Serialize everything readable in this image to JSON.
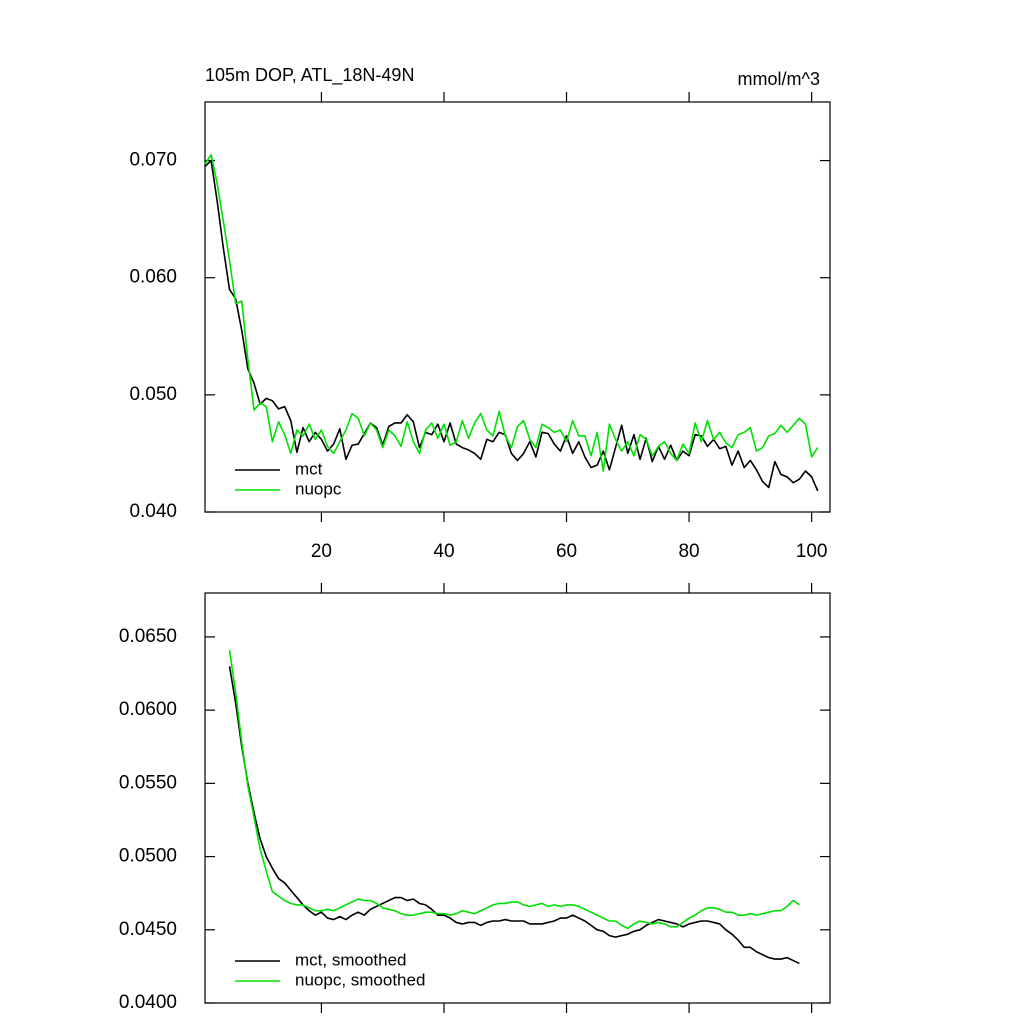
{
  "chart_data": [
    {
      "type": "line",
      "title": "105m DOP, ATL_18N-49N",
      "units": "mmol/m^3",
      "x": [
        1,
        2,
        3,
        4,
        5,
        6,
        7,
        8,
        9,
        10,
        11,
        12,
        13,
        14,
        15,
        16,
        17,
        18,
        19,
        20,
        21,
        22,
        23,
        24,
        25,
        26,
        27,
        28,
        29,
        30,
        31,
        32,
        33,
        34,
        35,
        36,
        37,
        38,
        39,
        40,
        41,
        42,
        43,
        44,
        45,
        46,
        47,
        48,
        49,
        50,
        51,
        52,
        53,
        54,
        55,
        56,
        57,
        58,
        59,
        60,
        61,
        62,
        63,
        64,
        65,
        66,
        67,
        68,
        69,
        70,
        71,
        72,
        73,
        74,
        75,
        76,
        77,
        78,
        79,
        80,
        81,
        82,
        83,
        84,
        85,
        86,
        87,
        88,
        89,
        90,
        91,
        92,
        93,
        94,
        95,
        96,
        97,
        98,
        99,
        100,
        101
      ],
      "series": [
        {
          "name": "mct",
          "color": "#000000",
          "values": [
            0.0695,
            0.07,
            0.0665,
            0.0625,
            0.059,
            0.0582,
            0.0555,
            0.0522,
            0.051,
            0.0492,
            0.0497,
            0.0495,
            0.0488,
            0.049,
            0.0478,
            0.0451,
            0.0472,
            0.046,
            0.0468,
            0.0462,
            0.0452,
            0.0458,
            0.0471,
            0.0445,
            0.0457,
            0.0458,
            0.0467,
            0.0476,
            0.0472,
            0.0457,
            0.0473,
            0.0476,
            0.0476,
            0.0483,
            0.0477,
            0.0455,
            0.0468,
            0.0466,
            0.0475,
            0.046,
            0.0476,
            0.0458,
            0.0455,
            0.0453,
            0.045,
            0.0445,
            0.0462,
            0.046,
            0.0468,
            0.0466,
            0.045,
            0.0444,
            0.045,
            0.046,
            0.0447,
            0.0468,
            0.0467,
            0.0458,
            0.0452,
            0.0465,
            0.045,
            0.046,
            0.0447,
            0.0438,
            0.044,
            0.0452,
            0.0436,
            0.0455,
            0.0474,
            0.045,
            0.0466,
            0.0445,
            0.0463,
            0.0443,
            0.0456,
            0.0445,
            0.0457,
            0.0444,
            0.0452,
            0.0448,
            0.0466,
            0.0465,
            0.0456,
            0.0462,
            0.0454,
            0.0456,
            0.044,
            0.0452,
            0.0438,
            0.0444,
            0.0436,
            0.0426,
            0.0421,
            0.0443,
            0.0432,
            0.043,
            0.0425,
            0.0428,
            0.0435,
            0.043,
            0.0418
          ]
        },
        {
          "name": "nuopc",
          "color": "#00e000",
          "values": [
            0.0697,
            0.0705,
            0.068,
            0.0648,
            0.0615,
            0.0578,
            0.058,
            0.053,
            0.0487,
            0.0493,
            0.049,
            0.046,
            0.0477,
            0.0466,
            0.045,
            0.047,
            0.0465,
            0.0475,
            0.0462,
            0.047,
            0.0456,
            0.045,
            0.046,
            0.047,
            0.0484,
            0.048,
            0.0465,
            0.0476,
            0.047,
            0.0455,
            0.047,
            0.0465,
            0.0456,
            0.0477,
            0.046,
            0.045,
            0.047,
            0.0476,
            0.0463,
            0.0475,
            0.0457,
            0.046,
            0.0478,
            0.0463,
            0.0476,
            0.0484,
            0.047,
            0.0465,
            0.0486,
            0.0465,
            0.0455,
            0.0473,
            0.0478,
            0.0462,
            0.0455,
            0.0475,
            0.0472,
            0.0468,
            0.047,
            0.046,
            0.0478,
            0.0465,
            0.0465,
            0.0448,
            0.0468,
            0.0435,
            0.0475,
            0.0462,
            0.0452,
            0.046,
            0.0448,
            0.0466,
            0.0462,
            0.0448,
            0.0456,
            0.046,
            0.045,
            0.0444,
            0.0458,
            0.045,
            0.0476,
            0.046,
            0.0478,
            0.0462,
            0.0468,
            0.0459,
            0.0455,
            0.0466,
            0.0468,
            0.0472,
            0.0452,
            0.0455,
            0.0465,
            0.0467,
            0.0474,
            0.0468,
            0.0474,
            0.048,
            0.0475,
            0.0447,
            0.0455
          ]
        }
      ],
      "xlim": [
        1,
        103
      ],
      "xticks": [
        20,
        40,
        60,
        80,
        100
      ],
      "xtick_labels": true,
      "ylim": [
        0.04,
        0.075
      ],
      "yticks": [
        {
          "value": 0.04,
          "label": "0.040"
        },
        {
          "value": 0.05,
          "label": "0.050"
        },
        {
          "value": 0.06,
          "label": "0.060"
        },
        {
          "value": 0.07,
          "label": "0.070"
        }
      ],
      "legend": "lower left"
    },
    {
      "type": "line",
      "x": [
        5,
        6,
        7,
        8,
        9,
        10,
        11,
        12,
        13,
        14,
        15,
        16,
        17,
        18,
        19,
        20,
        21,
        22,
        23,
        24,
        25,
        26,
        27,
        28,
        29,
        30,
        31,
        32,
        33,
        34,
        35,
        36,
        37,
        38,
        39,
        40,
        41,
        42,
        43,
        44,
        45,
        46,
        47,
        48,
        49,
        50,
        51,
        52,
        53,
        54,
        55,
        56,
        57,
        58,
        59,
        60,
        61,
        62,
        63,
        64,
        65,
        66,
        67,
        68,
        69,
        70,
        71,
        72,
        73,
        74,
        75,
        76,
        77,
        78,
        79,
        80,
        81,
        82,
        83,
        84,
        85,
        86,
        87,
        88,
        89,
        90,
        91,
        92,
        93,
        94,
        95,
        96,
        97,
        98
      ],
      "series": [
        {
          "name": "mct, smoothed",
          "color": "#000000",
          "values": [
            0.063,
            0.0605,
            0.0575,
            0.055,
            0.053,
            0.0512,
            0.05,
            0.0492,
            0.0485,
            0.0482,
            0.0477,
            0.0472,
            0.0467,
            0.0463,
            0.046,
            0.0462,
            0.0458,
            0.0457,
            0.0459,
            0.0457,
            0.046,
            0.0462,
            0.046,
            0.0464,
            0.0466,
            0.0468,
            0.047,
            0.0472,
            0.0472,
            0.047,
            0.0471,
            0.0468,
            0.0467,
            0.0464,
            0.046,
            0.046,
            0.0458,
            0.0455,
            0.0454,
            0.0455,
            0.0455,
            0.0453,
            0.0455,
            0.0456,
            0.0456,
            0.0457,
            0.0456,
            0.0456,
            0.0456,
            0.0454,
            0.0454,
            0.0454,
            0.0455,
            0.0456,
            0.0458,
            0.0458,
            0.046,
            0.0458,
            0.0456,
            0.0453,
            0.045,
            0.0449,
            0.0446,
            0.0445,
            0.0446,
            0.0447,
            0.0449,
            0.045,
            0.0453,
            0.0455,
            0.0457,
            0.0456,
            0.0455,
            0.0454,
            0.0452,
            0.0454,
            0.0455,
            0.0456,
            0.0456,
            0.0455,
            0.0454,
            0.045,
            0.0447,
            0.0443,
            0.0438,
            0.0438,
            0.0435,
            0.0433,
            0.0431,
            0.043,
            0.043,
            0.0431,
            0.0429,
            0.0427
          ]
        },
        {
          "name": "nuopc, smoothed",
          "color": "#00e000",
          "values": [
            0.0641,
            0.0612,
            0.0578,
            0.0548,
            0.0527,
            0.0505,
            0.049,
            0.0476,
            0.0473,
            0.047,
            0.0468,
            0.0467,
            0.0467,
            0.0465,
            0.0463,
            0.0463,
            0.0464,
            0.0463,
            0.0465,
            0.0467,
            0.0469,
            0.0471,
            0.047,
            0.047,
            0.0468,
            0.0465,
            0.0464,
            0.0463,
            0.0461,
            0.046,
            0.046,
            0.0461,
            0.0462,
            0.0462,
            0.0461,
            0.0461,
            0.046,
            0.0461,
            0.0463,
            0.0462,
            0.0461,
            0.0463,
            0.0465,
            0.0467,
            0.0468,
            0.0468,
            0.0469,
            0.0469,
            0.0467,
            0.0466,
            0.0467,
            0.0468,
            0.0466,
            0.0467,
            0.0466,
            0.0467,
            0.0467,
            0.0466,
            0.0464,
            0.0462,
            0.046,
            0.0458,
            0.0456,
            0.0456,
            0.0453,
            0.0451,
            0.0454,
            0.0456,
            0.0455,
            0.0454,
            0.0455,
            0.0454,
            0.0452,
            0.0452,
            0.0455,
            0.0458,
            0.046,
            0.0463,
            0.0465,
            0.0465,
            0.0464,
            0.0462,
            0.0462,
            0.046,
            0.046,
            0.0461,
            0.046,
            0.0461,
            0.0462,
            0.0463,
            0.0463,
            0.0466,
            0.047,
            0.0467
          ]
        }
      ],
      "xlim": [
        1,
        103
      ],
      "xticks": [
        20,
        40,
        60,
        80,
        100
      ],
      "xtick_labels": false,
      "ylim": [
        0.04,
        0.068
      ],
      "yticks": [
        {
          "value": 0.04,
          "label": "0.0400"
        },
        {
          "value": 0.045,
          "label": "0.0450"
        },
        {
          "value": 0.05,
          "label": "0.0500"
        },
        {
          "value": 0.055,
          "label": "0.0550"
        },
        {
          "value": 0.06,
          "label": "0.0600"
        },
        {
          "value": 0.065,
          "label": "0.0650"
        }
      ],
      "legend": "lower left"
    }
  ]
}
